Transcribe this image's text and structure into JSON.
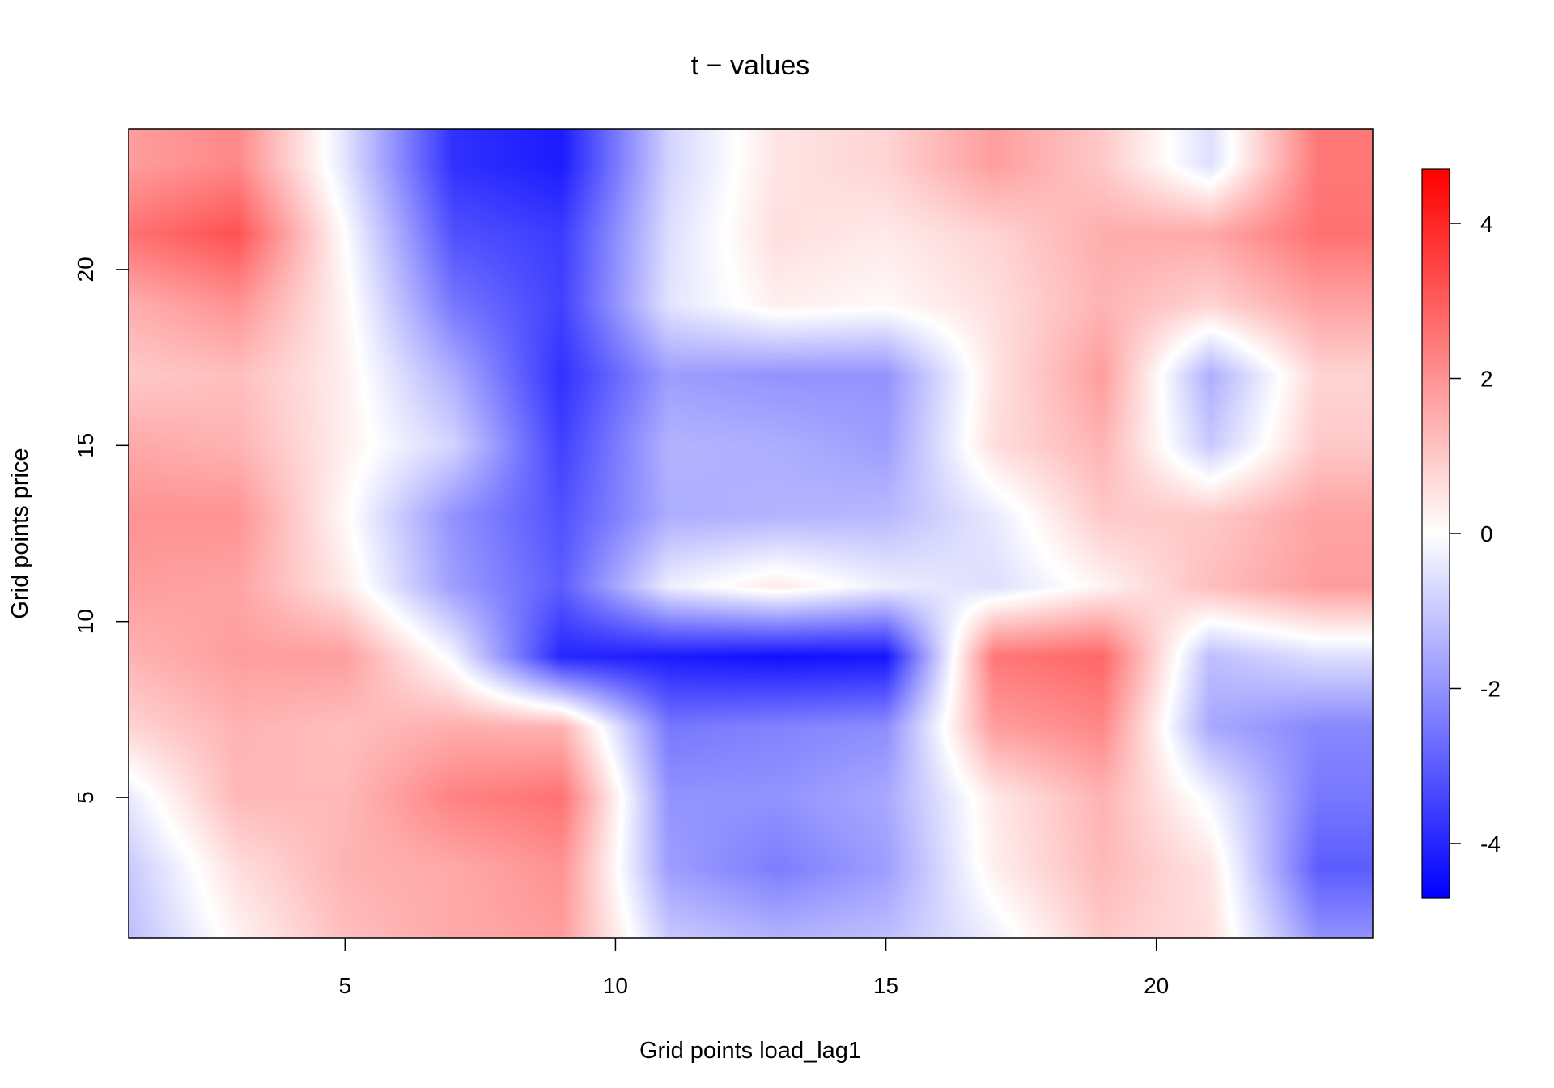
{
  "chart_data": {
    "type": "heatmap",
    "title": "t − values",
    "xlabel": "Grid points load_lag1",
    "ylabel": "Grid points price",
    "xlim": [
      1,
      24
    ],
    "ylim": [
      1,
      24
    ],
    "x_ticks": [
      5,
      10,
      15,
      20
    ],
    "x_tick_labels": [
      "5",
      "10",
      "15",
      "20"
    ],
    "y_ticks": [
      5,
      10,
      15,
      20
    ],
    "y_tick_labels": [
      "5",
      "10",
      "15",
      "20"
    ],
    "color_scale": {
      "min": -4.7,
      "max": 4.7,
      "low_color": "#0000ff",
      "mid_color": "#ffffff",
      "high_color": "#ff0000",
      "ticks": [
        -4,
        -2,
        0,
        2,
        4
      ],
      "tick_labels": [
        "-4",
        "-2",
        "0",
        "2",
        "4"
      ]
    },
    "x": [
      1,
      3,
      5,
      7,
      9,
      11,
      13,
      15,
      17,
      19,
      21,
      23
    ],
    "y": [
      23,
      21,
      19,
      17,
      15,
      13,
      11,
      9,
      7,
      5,
      3,
      1
    ],
    "z": [
      [
        1.8,
        2.2,
        -0.5,
        -3.8,
        -4.2,
        -0.8,
        0.5,
        0.8,
        1.8,
        1.0,
        -0.6,
        2.5
      ],
      [
        2.6,
        3.2,
        0.0,
        -3.2,
        -3.6,
        -0.6,
        0.6,
        0.4,
        0.8,
        1.5,
        1.6,
        2.6
      ],
      [
        1.5,
        2.0,
        0.2,
        -2.5,
        -3.5,
        -0.5,
        0.3,
        0.1,
        0.6,
        1.4,
        0.8,
        1.7
      ],
      [
        1.0,
        1.2,
        0.3,
        -1.5,
        -3.8,
        -1.8,
        -2.0,
        -2.0,
        0.5,
        1.8,
        -1.5,
        0.8
      ],
      [
        1.6,
        1.4,
        0.3,
        -0.8,
        -3.5,
        -1.4,
        -1.5,
        -1.8,
        0.6,
        1.4,
        -1.0,
        1.0
      ],
      [
        2.0,
        2.0,
        0.1,
        -2.0,
        -3.2,
        -1.5,
        -1.4,
        -1.3,
        -0.4,
        1.0,
        1.0,
        1.7
      ],
      [
        1.8,
        1.7,
        0.4,
        -1.8,
        -3.0,
        -0.3,
        0.4,
        -0.3,
        -0.6,
        0.2,
        1.2,
        1.8
      ],
      [
        1.4,
        1.8,
        1.8,
        -0.2,
        -4.0,
        -4.2,
        -4.4,
        -4.3,
        2.5,
        2.8,
        -1.2,
        -0.6
      ],
      [
        0.8,
        1.4,
        1.2,
        1.5,
        1.4,
        -2.5,
        -2.3,
        -2.1,
        1.8,
        2.2,
        -1.6,
        -2.2
      ],
      [
        -0.4,
        1.3,
        1.3,
        2.3,
        2.6,
        -2.0,
        -2.0,
        -1.6,
        0.4,
        1.4,
        -0.2,
        -2.5
      ],
      [
        -1.0,
        0.6,
        1.4,
        1.6,
        2.0,
        -1.8,
        -2.4,
        -1.8,
        0.3,
        1.3,
        0.5,
        -3.0
      ],
      [
        -1.2,
        0.2,
        1.2,
        1.6,
        1.8,
        -1.0,
        -1.4,
        -1.2,
        -0.3,
        1.0,
        0.6,
        -2.0
      ]
    ]
  }
}
